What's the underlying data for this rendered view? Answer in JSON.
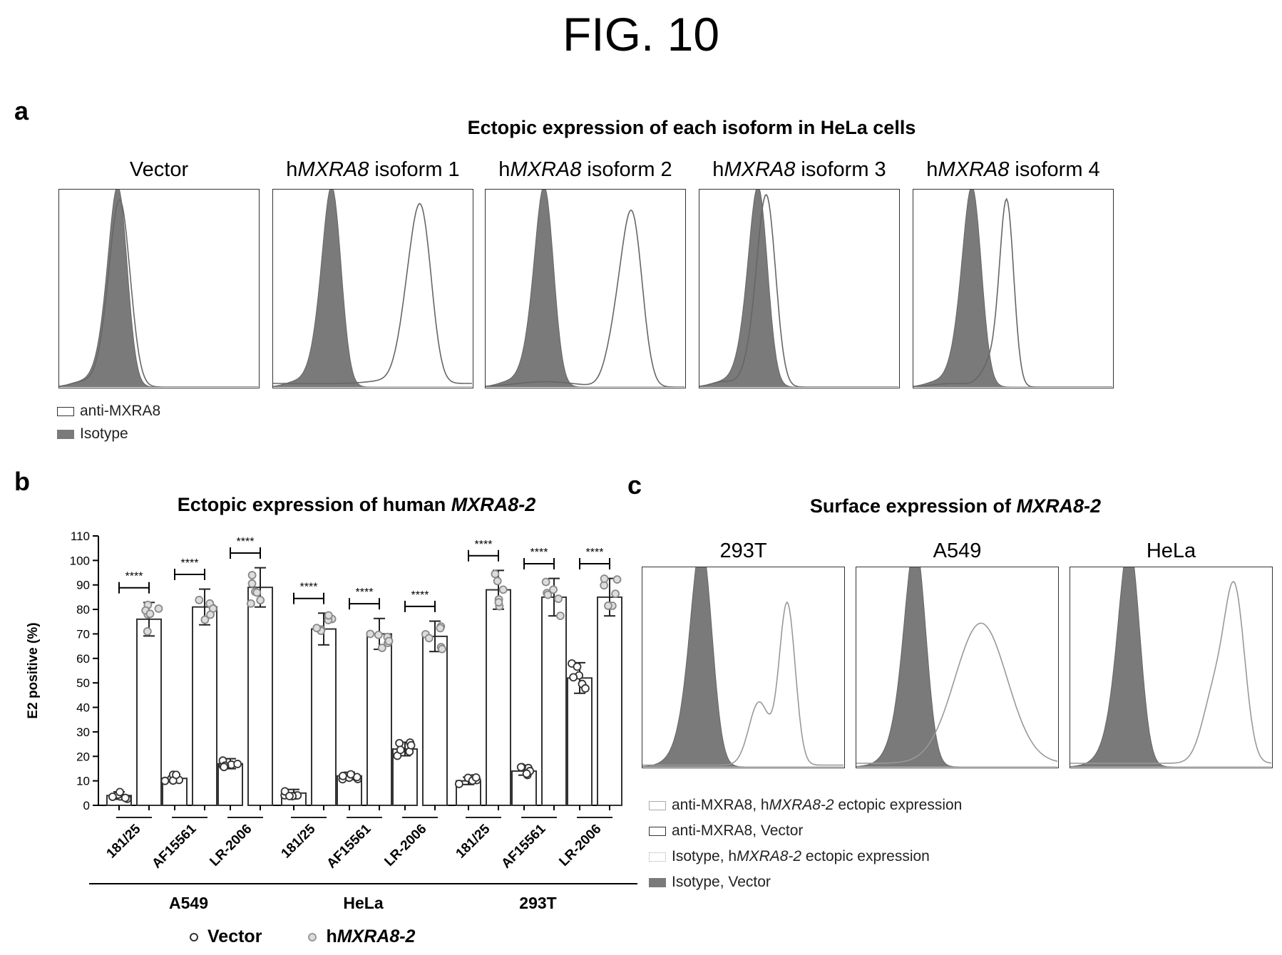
{
  "figure_title": "FIG. 10",
  "panel_a": {
    "letter": "a",
    "title": "Ectopic expression of each isoform in HeLa cells",
    "histograms": [
      {
        "prefix": "",
        "gene": "",
        "suffix": "Vector"
      },
      {
        "prefix": "h",
        "gene": "MXRA8",
        "suffix": " isoform 1"
      },
      {
        "prefix": "h",
        "gene": "MXRA8",
        "suffix": " isoform 2"
      },
      {
        "prefix": "h",
        "gene": "MXRA8",
        "suffix": " isoform 3"
      },
      {
        "prefix": "h",
        "gene": "MXRA8",
        "suffix": " isoform 4"
      }
    ],
    "legend": [
      "anti-MXRA8",
      "Isotype"
    ]
  },
  "panel_b": {
    "letter": "b",
    "title_plain": "Ectopic expression of human ",
    "title_italic": "MXRA8-2",
    "legend": {
      "vector": "Vector",
      "h_prefix": "h",
      "h_gene": "MXRA8-2"
    }
  },
  "panel_c": {
    "letter": "c",
    "title_plain": "Surface expression of ",
    "title_italic": "MXRA8-2",
    "histograms": [
      "293T",
      "A549",
      "HeLa"
    ],
    "legend": [
      {
        "pre": "anti-MXRA8, h",
        "it": "MXRA8-2",
        "post": " ectopic expression"
      },
      {
        "pre": "anti-MXRA8, Vector",
        "it": "",
        "post": ""
      },
      {
        "pre": "Isotype, h",
        "it": "MXRA8-2",
        "post": " ectopic expression"
      },
      {
        "pre": "Isotype, Vector",
        "it": "",
        "post": ""
      }
    ]
  },
  "chart_data": [
    {
      "type": "bar",
      "panel": "b",
      "title": "Ectopic expression of human MXRA8-2",
      "ylabel": "E2 positive (%)",
      "ylim": [
        0,
        110
      ],
      "yticks": [
        0,
        10,
        20,
        30,
        40,
        50,
        60,
        70,
        80,
        90,
        100,
        110
      ],
      "significance": "****",
      "groups": [
        {
          "cell_line": "A549",
          "antibodies": [
            {
              "name": "181/25",
              "vector": 4,
              "hMXRA8_2": 76
            },
            {
              "name": "AF15561",
              "vector": 11,
              "hMXRA8_2": 81
            },
            {
              "name": "LR-2006",
              "vector": 17,
              "hMXRA8_2": 89
            }
          ]
        },
        {
          "cell_line": "HeLa",
          "antibodies": [
            {
              "name": "181/25",
              "vector": 5,
              "hMXRA8_2": 72
            },
            {
              "name": "AF15561",
              "vector": 12,
              "hMXRA8_2": 70
            },
            {
              "name": "LR-2006",
              "vector": 23,
              "hMXRA8_2": 69
            }
          ]
        },
        {
          "cell_line": "293T",
          "antibodies": [
            {
              "name": "181/25",
              "vector": 10,
              "hMXRA8_2": 88
            },
            {
              "name": "AF15561",
              "vector": 14,
              "hMXRA8_2": 85
            },
            {
              "name": "LR-2006",
              "vector": 52,
              "hMXRA8_2": 85
            }
          ]
        }
      ],
      "series": [
        {
          "name": "Vector",
          "values": [
            4,
            11,
            17,
            5,
            12,
            23,
            10,
            14,
            52
          ]
        },
        {
          "name": "hMXRA8-2",
          "values": [
            76,
            81,
            89,
            72,
            70,
            69,
            88,
            85,
            85
          ]
        }
      ]
    }
  ]
}
